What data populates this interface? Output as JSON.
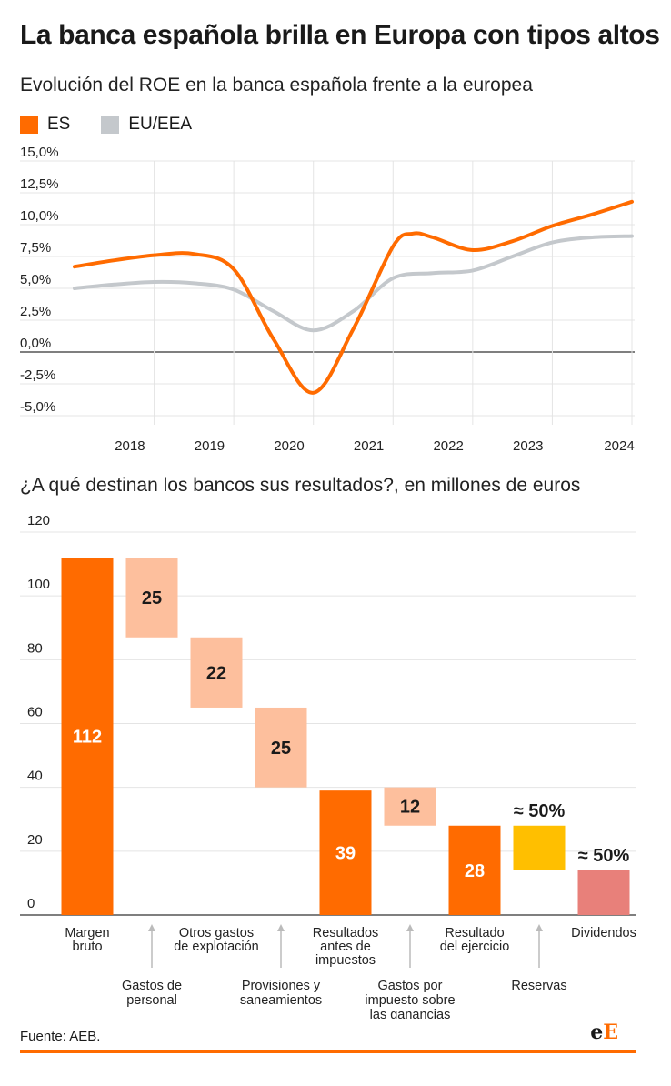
{
  "title": "La banca española brilla en Europa con tipos altos",
  "subtitle": "Evolución del ROE en la banca española frente a la europea",
  "colors": {
    "es": "#ff6b00",
    "eu": "#c4c8cc",
    "accent": "#ff6b00"
  },
  "chart_data": [
    {
      "type": "line",
      "ylim": [
        -5,
        15
      ],
      "yticks": [
        "15,0%",
        "12,5%",
        "10,0%",
        "7,5%",
        "5,0%",
        "2,5%",
        "0,0%",
        "-2,5%",
        "-5,0%"
      ],
      "ytick_values": [
        15,
        12.5,
        10,
        7.5,
        5,
        2.5,
        0,
        -2.5,
        -5
      ],
      "xticks": [
        "2018",
        "2019",
        "2020",
        "2021",
        "2022",
        "2023",
        "2024"
      ],
      "xtick_values": [
        2018,
        2019,
        2020,
        2021,
        2022,
        2023,
        2024
      ],
      "series": [
        {
          "name": "ES",
          "x": [
            2017.0,
            2017.5,
            2018.0,
            2018.5,
            2019.0,
            2019.5,
            2020.0,
            2020.5,
            2021.0,
            2021.25,
            2021.5,
            2022.0,
            2022.5,
            2023.0,
            2023.5,
            2024.0
          ],
          "values": [
            6.7,
            7.2,
            7.6,
            7.7,
            6.5,
            1.0,
            -3.2,
            1.8,
            8.3,
            9.3,
            9.0,
            8.0,
            8.7,
            9.9,
            10.8,
            11.8
          ]
        },
        {
          "name": "EU/EEA",
          "x": [
            2017.0,
            2017.5,
            2018.0,
            2018.5,
            2019.0,
            2019.5,
            2020.0,
            2020.5,
            2021.0,
            2021.5,
            2022.0,
            2022.5,
            2023.0,
            2023.5,
            2024.0
          ],
          "values": [
            5.0,
            5.3,
            5.5,
            5.4,
            4.9,
            3.2,
            1.7,
            3.2,
            5.8,
            6.2,
            6.4,
            7.5,
            8.6,
            9.0,
            9.1
          ]
        }
      ]
    },
    {
      "type": "bar",
      "title": "¿A qué destinan los bancos sus resultados?, en millones de euros",
      "ylim": [
        0,
        120
      ],
      "yticks": [
        0,
        20,
        40,
        60,
        80,
        100,
        120
      ],
      "bars": [
        {
          "base": 0,
          "value": 112,
          "label": "112",
          "color": "#ff6b00",
          "text_color": "#ffffff",
          "cat": "Margen\nbruto",
          "cat_pos": "top",
          "label_pos": "inside"
        },
        {
          "base": 87,
          "value": 25,
          "label": "25",
          "color": "#fdbf9d",
          "text_color": "#1a1a1a",
          "cat": "Gastos de\npersonal",
          "cat_pos": "bottom",
          "label_pos": "inside-top"
        },
        {
          "base": 65,
          "value": 22,
          "label": "22",
          "color": "#fdbf9d",
          "text_color": "#1a1a1a",
          "cat": "Otros gastos\nde explotación",
          "cat_pos": "top",
          "label_pos": "inside-top"
        },
        {
          "base": 40,
          "value": 25,
          "label": "25",
          "color": "#fdbf9d",
          "text_color": "#1a1a1a",
          "cat": "Provisiones y\nsaneamientos",
          "cat_pos": "bottom",
          "label_pos": "inside-top"
        },
        {
          "base": 0,
          "value": 39,
          "label": "39",
          "color": "#ff6b00",
          "text_color": "#ffffff",
          "cat": "Resultados\nantes de\nimpuestos",
          "cat_pos": "top",
          "label_pos": "inside"
        },
        {
          "base": 28,
          "value": 12,
          "label": "12",
          "color": "#fdbf9d",
          "text_color": "#1a1a1a",
          "cat": "Gastos por\nimpuesto sobre\nlas ganancias",
          "cat_pos": "bottom",
          "label_pos": "inside"
        },
        {
          "base": 0,
          "value": 28,
          "label": "28",
          "color": "#ff6b00",
          "text_color": "#ffffff",
          "cat": "Resultado\ndel ejercicio",
          "cat_pos": "top",
          "label_pos": "inside"
        },
        {
          "base": 14,
          "value": 14,
          "label": "≈ 50%",
          "color": "#ffbf00",
          "text_color": "#1a1a1a",
          "cat": "Reservas",
          "cat_pos": "bottom",
          "label_pos": "above"
        },
        {
          "base": 0,
          "value": 14,
          "label": "≈ 50%",
          "color": "#e8807a",
          "text_color": "#1a1a1a",
          "cat": "Dividendos",
          "cat_pos": "top",
          "label_pos": "above"
        }
      ]
    }
  ],
  "footer": {
    "source": "Fuente: AEB.",
    "logo_e": "e",
    "logo_E": "E"
  }
}
